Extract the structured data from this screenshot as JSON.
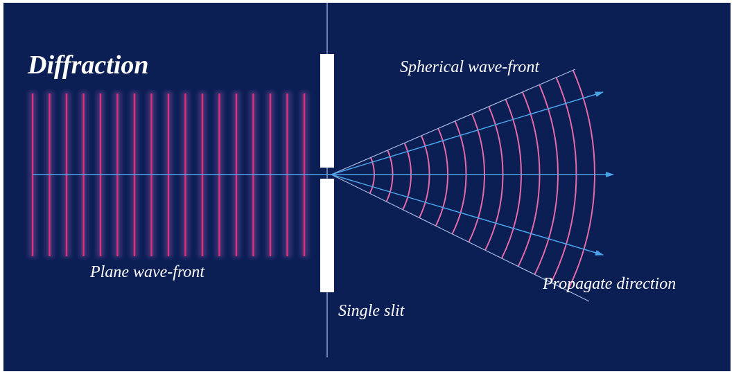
{
  "title": "Diffraction",
  "labels": {
    "spherical": "Spherical wave-front",
    "plane": "Plane wave-front",
    "slit": "Single slit",
    "direction": "Propagate direction"
  }
}
